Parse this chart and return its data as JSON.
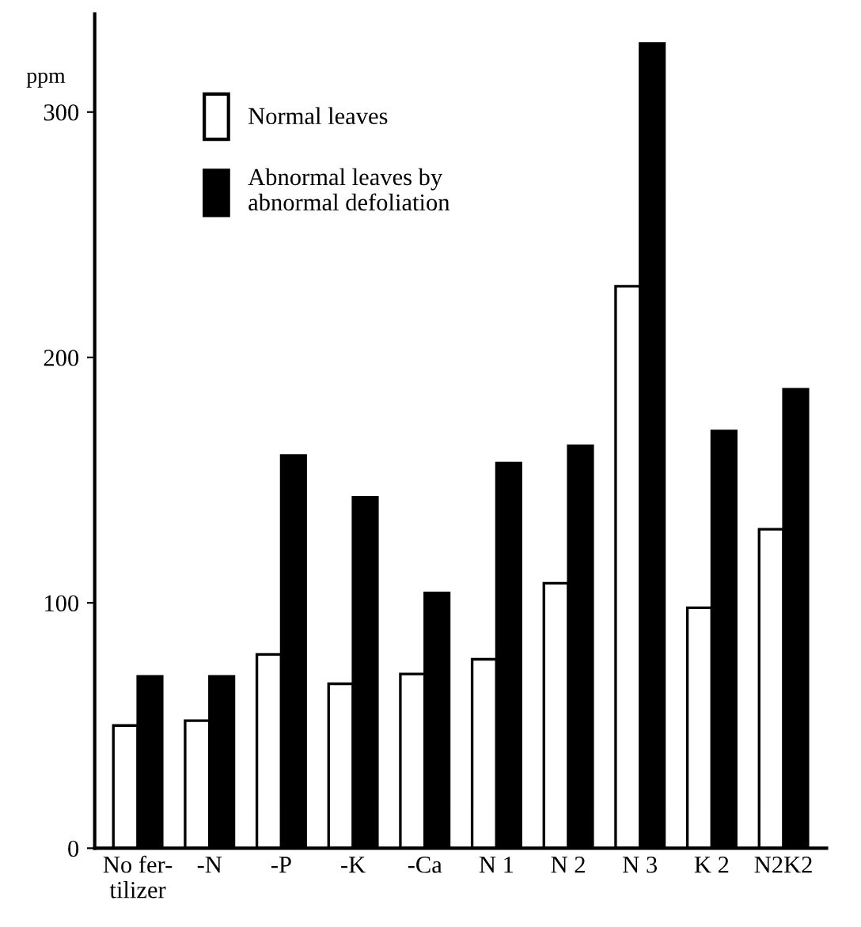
{
  "chart_data": {
    "type": "bar",
    "ylabel": "ppm",
    "categories": [
      "No fer-\ntilizer",
      "-N",
      "-P",
      "-K",
      "-Ca",
      "N 1",
      "N 2",
      "N 3",
      "K 2",
      "N2K2"
    ],
    "series": [
      {
        "name": "Normal leaves",
        "color": "#ffffff",
        "values": [
          50,
          52,
          79,
          67,
          71,
          77,
          108,
          229,
          98,
          130
        ]
      },
      {
        "name": "Abnormal leaves by\nabnormal defoliation",
        "color": "#000000",
        "values": [
          70,
          70,
          160,
          143,
          104,
          157,
          164,
          328,
          170,
          187
        ]
      }
    ],
    "ylim": [
      0,
      340
    ],
    "yticks": [
      0,
      100,
      200,
      300
    ],
    "grid": false,
    "legend": "top left"
  }
}
